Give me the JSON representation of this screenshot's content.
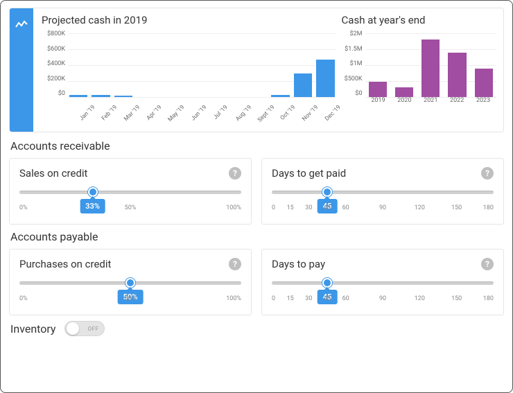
{
  "charts": {
    "projected": {
      "title": "Projected cash in 2019",
      "type": "bar",
      "bar_color": "#3c97e8",
      "grid_color": "#eeeeee",
      "ymax": 800,
      "ylabels": [
        "$800K",
        "$600K",
        "$400K",
        "$200K",
        "$0"
      ],
      "categories": [
        "Jan '19",
        "Feb '19",
        "Mar '19",
        "Apr '19",
        "May '19",
        "Jun '19",
        "Jul '19",
        "Aug '19",
        "Sept '19",
        "Oct '19",
        "Nov '19",
        "Dec '19"
      ],
      "values": [
        30,
        30,
        15,
        0,
        0,
        0,
        0,
        0,
        0,
        30,
        300,
        470
      ]
    },
    "year_end": {
      "title": "Cash at year's end",
      "type": "bar",
      "bar_color": "#a14da1",
      "grid_color": "#eeeeee",
      "ymax": 2000,
      "ylabels": [
        "$2M",
        "$1.5M",
        "$1M",
        "$500K",
        "$0"
      ],
      "categories": [
        "2019",
        "2020",
        "2021",
        "2022",
        "2023"
      ],
      "values": [
        470,
        300,
        1800,
        1400,
        900
      ]
    }
  },
  "accounts_receivable": {
    "heading": "Accounts receivable",
    "sales_on_credit": {
      "title": "Sales on credit",
      "value": 33,
      "value_label": "33%",
      "min": 0,
      "max": 100,
      "ticks": [
        {
          "pos": 0,
          "label": "0%"
        },
        {
          "pos": 50,
          "label": "50%"
        },
        {
          "pos": 100,
          "label": "100%"
        }
      ]
    },
    "days_to_get_paid": {
      "title": "Days to get paid",
      "value": 45,
      "value_label": "45",
      "min": 0,
      "max": 180,
      "ticks": [
        {
          "pos": 0,
          "label": "0"
        },
        {
          "pos": 15,
          "label": "15"
        },
        {
          "pos": 30,
          "label": "30"
        },
        {
          "pos": 45,
          "label": "45"
        },
        {
          "pos": 60,
          "label": "60"
        },
        {
          "pos": 90,
          "label": "90"
        },
        {
          "pos": 120,
          "label": "120"
        },
        {
          "pos": 150,
          "label": "150"
        },
        {
          "pos": 180,
          "label": "180"
        }
      ]
    }
  },
  "accounts_payable": {
    "heading": "Accounts payable",
    "purchases_on_credit": {
      "title": "Purchases on credit",
      "value": 50,
      "value_label": "50%",
      "min": 0,
      "max": 100,
      "ticks": [
        {
          "pos": 0,
          "label": "0%"
        },
        {
          "pos": 50,
          "label": "50%"
        },
        {
          "pos": 100,
          "label": "100%"
        }
      ]
    },
    "days_to_pay": {
      "title": "Days to pay",
      "value": 45,
      "value_label": "45",
      "min": 0,
      "max": 180,
      "ticks": [
        {
          "pos": 0,
          "label": "0"
        },
        {
          "pos": 15,
          "label": "15"
        },
        {
          "pos": 30,
          "label": "30"
        },
        {
          "pos": 45,
          "label": "45"
        },
        {
          "pos": 60,
          "label": "60"
        },
        {
          "pos": 90,
          "label": "90"
        },
        {
          "pos": 120,
          "label": "120"
        },
        {
          "pos": 150,
          "label": "150"
        },
        {
          "pos": 180,
          "label": "180"
        }
      ]
    }
  },
  "inventory": {
    "heading": "Inventory",
    "toggle_state": "off",
    "toggle_label": "OFF"
  },
  "colors": {
    "primary": "#3c97e8",
    "purple": "#a14da1",
    "border": "#e5e5e5",
    "text": "#333333",
    "muted": "#888888"
  }
}
